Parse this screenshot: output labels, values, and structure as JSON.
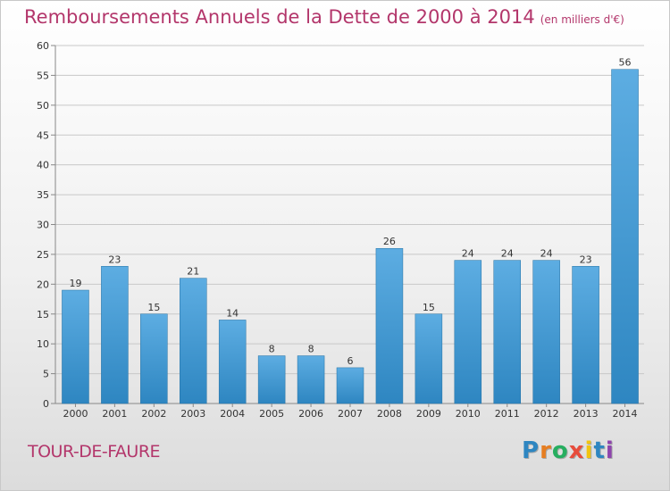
{
  "header": {
    "title": "Remboursements Annuels de la Dette de 2000 à 2014",
    "subtitle": "(en milliers d'€)"
  },
  "commune": "TOUR-DE-FAURE",
  "logo": {
    "letters": [
      "P",
      "r",
      "o",
      "x",
      "i",
      "t",
      "i"
    ],
    "colors": [
      "#2e86c1",
      "#e67e22",
      "#27ae60",
      "#e74c3c",
      "#f1c40f",
      "#2e86c1",
      "#8e44ad"
    ]
  },
  "chart_data": {
    "type": "bar",
    "categories": [
      "2000",
      "2001",
      "2002",
      "2003",
      "2004",
      "2005",
      "2006",
      "2007",
      "2008",
      "2009",
      "2010",
      "2011",
      "2012",
      "2013",
      "2014"
    ],
    "values": [
      19,
      23,
      15,
      21,
      14,
      8,
      8,
      6,
      26,
      15,
      24,
      24,
      24,
      23,
      56
    ],
    "ylim": [
      0,
      60
    ],
    "yticks": [
      0,
      5,
      10,
      15,
      20,
      25,
      30,
      35,
      40,
      45,
      50,
      55,
      60
    ],
    "grid": true,
    "colors": {
      "bar_light": "#5dade2",
      "bar_dark": "#2e86c1",
      "grid": "#c8c8c8",
      "axis": "#888888"
    }
  }
}
